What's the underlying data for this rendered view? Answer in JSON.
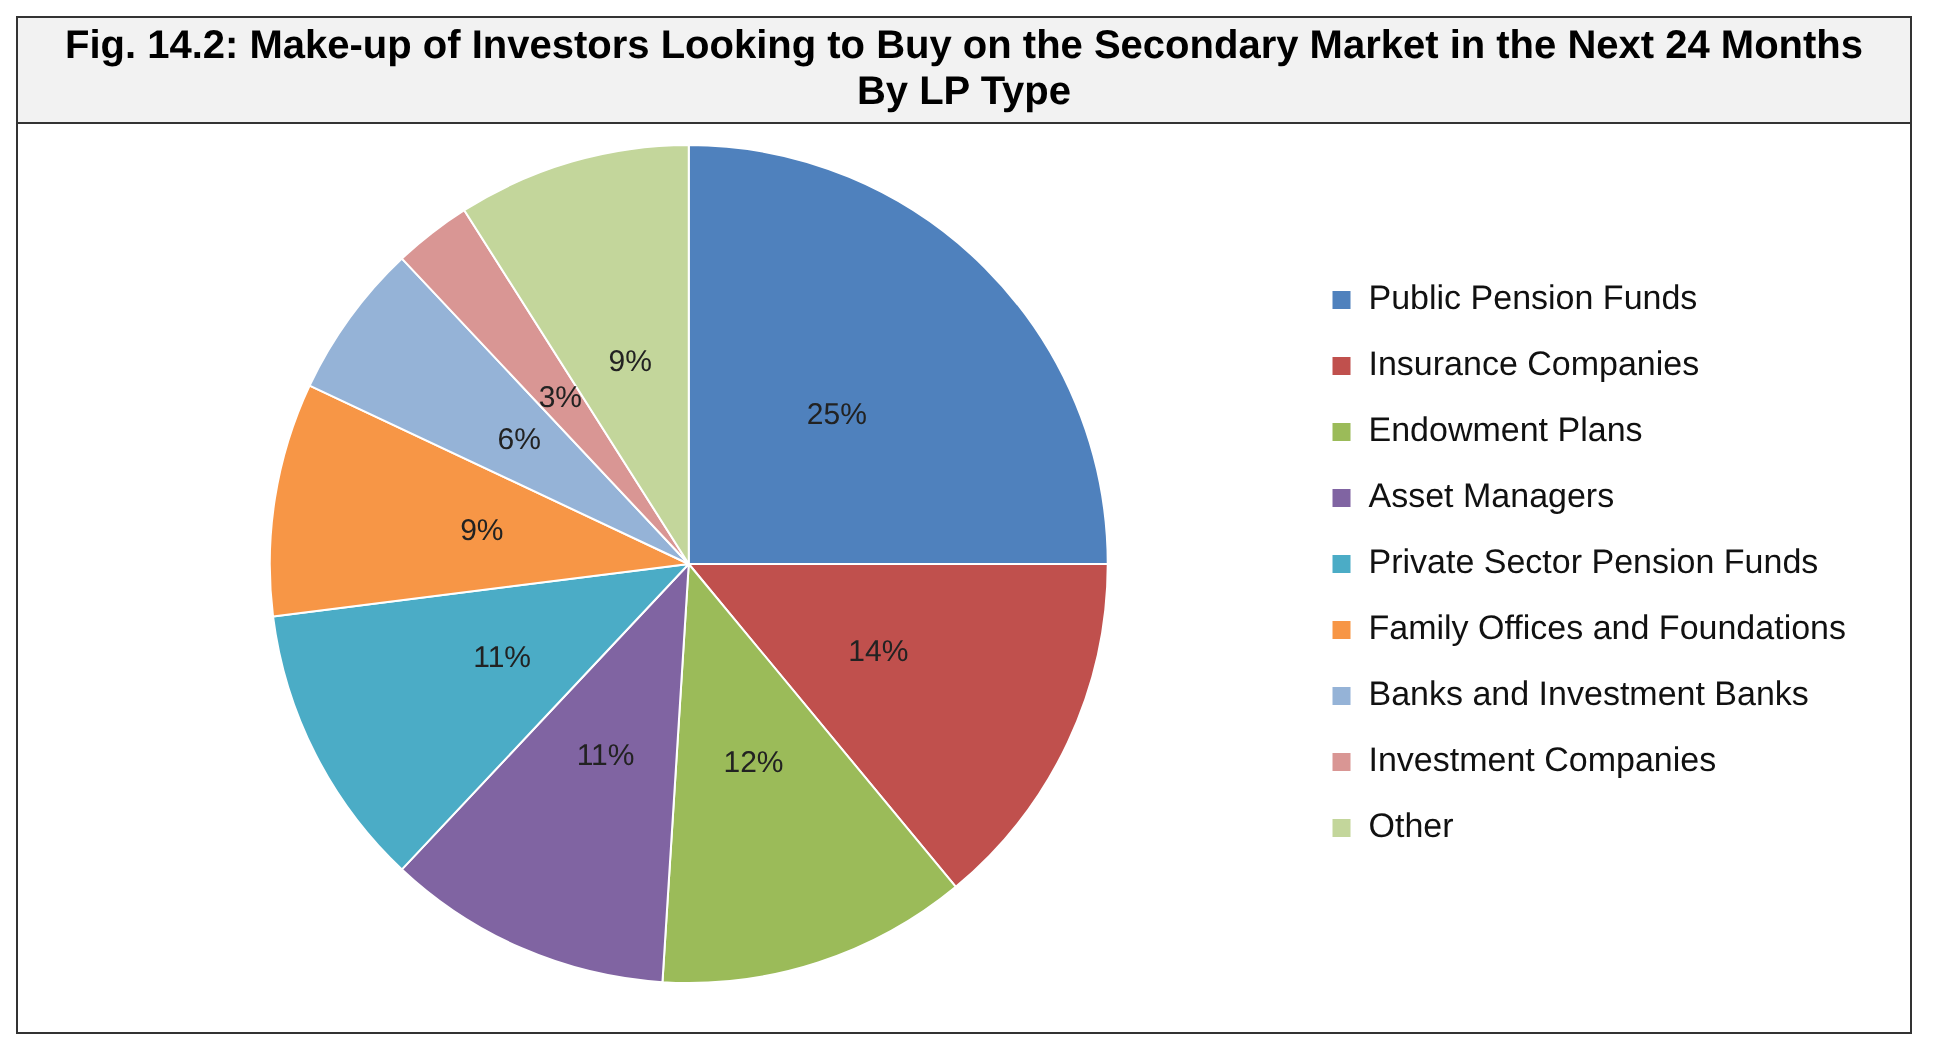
{
  "chart_data": {
    "type": "pie",
    "title": "Fig. 14.2: Make-up of Investors Looking to Buy on the Secondary Market in the Next 24 Months By LP Type",
    "categories": [
      "Public Pension Funds",
      "Insurance Companies",
      "Endowment Plans",
      "Asset Managers",
      "Private Sector Pension Funds",
      "Family Offices and Foundations",
      "Banks and Investment Banks",
      "Investment Companies",
      "Other"
    ],
    "values": [
      25,
      14,
      12,
      11,
      11,
      9,
      6,
      3,
      9
    ],
    "value_labels": [
      "25%",
      "14%",
      "12%",
      "11%",
      "11%",
      "9%",
      "6%",
      "3%",
      "9%"
    ],
    "colors": [
      "#4f81bd",
      "#c0504d",
      "#9bbb59",
      "#8064a2",
      "#4bacc6",
      "#f79646",
      "#95b3d7",
      "#d99694",
      "#c3d69b"
    ],
    "legend": "right"
  }
}
